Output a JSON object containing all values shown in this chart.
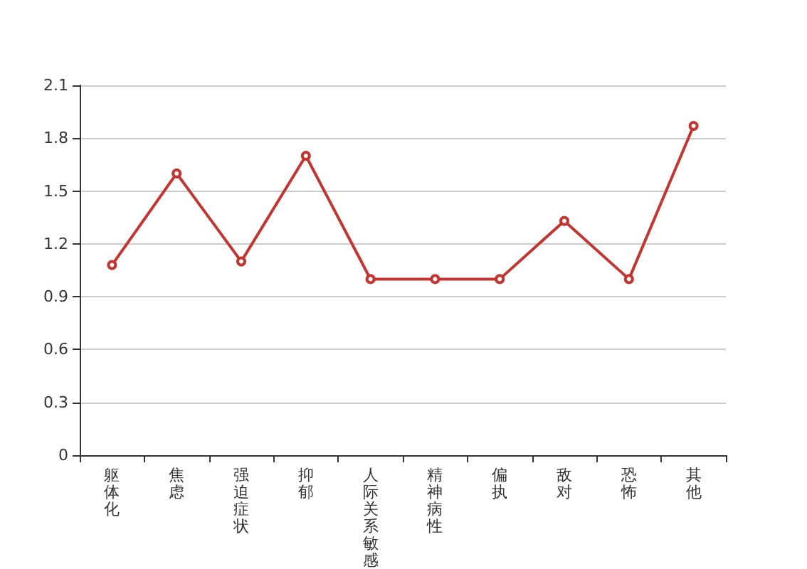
{
  "chart_data": {
    "type": "line",
    "categories": [
      "躯体化",
      "焦虑",
      "强迫症状",
      "抑郁",
      "人际关系敏感",
      "精神病性",
      "偏执",
      "敌对",
      "恐怖",
      "其他"
    ],
    "series": [
      {
        "color": "#c23531",
        "values": [
          1.08,
          1.6,
          1.1,
          1.7,
          1.0,
          1.0,
          1.0,
          1.33,
          1.0,
          1.87
        ]
      }
    ],
    "ylim": [
      0,
      2.1
    ],
    "yticks": [
      0,
      0.3,
      0.6,
      0.9,
      1.2,
      1.5,
      1.8,
      2.1
    ],
    "grid": "y",
    "marker": "circle",
    "line_style": "solid"
  }
}
